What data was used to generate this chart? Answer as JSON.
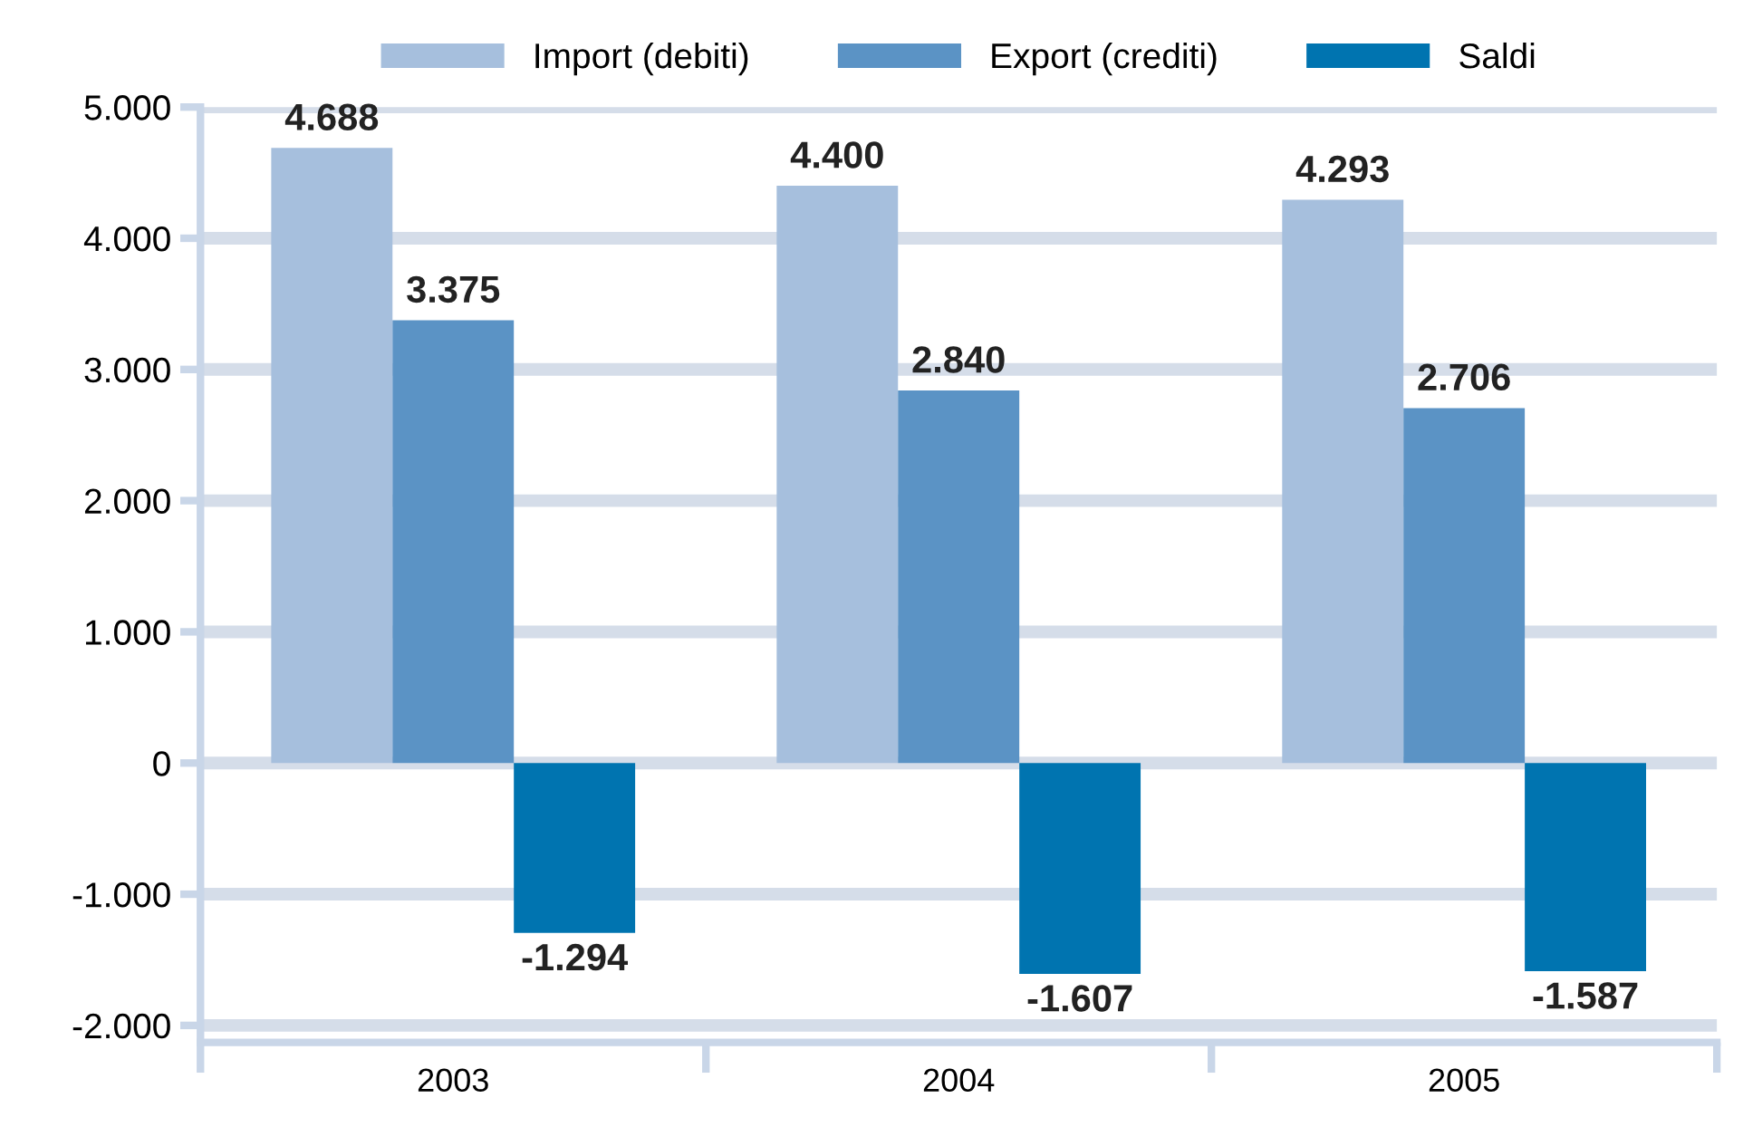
{
  "chart_data": {
    "type": "bar",
    "categories": [
      "2003",
      "2004",
      "2005"
    ],
    "series": [
      {
        "name": "Import (debiti)",
        "color": "#a6bfdd",
        "values": [
          4688,
          4400,
          4293
        ],
        "value_labels": [
          "4.688",
          "4.400",
          "4.293"
        ]
      },
      {
        "name": "Export (crediti)",
        "color": "#5b93c5",
        "values": [
          3375,
          2840,
          2706
        ],
        "value_labels": [
          "3.375",
          "2.840",
          "2.706"
        ]
      },
      {
        "name": "Saldi",
        "color": "#0074b0",
        "values": [
          -1294,
          -1607,
          -1587
        ],
        "value_labels": [
          "-1.294",
          "-1.607",
          "-1.587"
        ]
      }
    ],
    "ylim": [
      -2130,
      5000
    ],
    "yticks": [
      {
        "value": -2000,
        "label": "-2.000"
      },
      {
        "value": -1000,
        "label": "-1.000"
      },
      0,
      {
        "value": 1000,
        "label": "1.000"
      },
      {
        "value": 2000,
        "label": "2.000"
      },
      {
        "value": 3000,
        "label": "3.000"
      },
      {
        "value": 4000,
        "label": "4.000"
      },
      {
        "value": 5000,
        "label": "5.000"
      }
    ],
    "grid": "y",
    "legend": "top"
  }
}
